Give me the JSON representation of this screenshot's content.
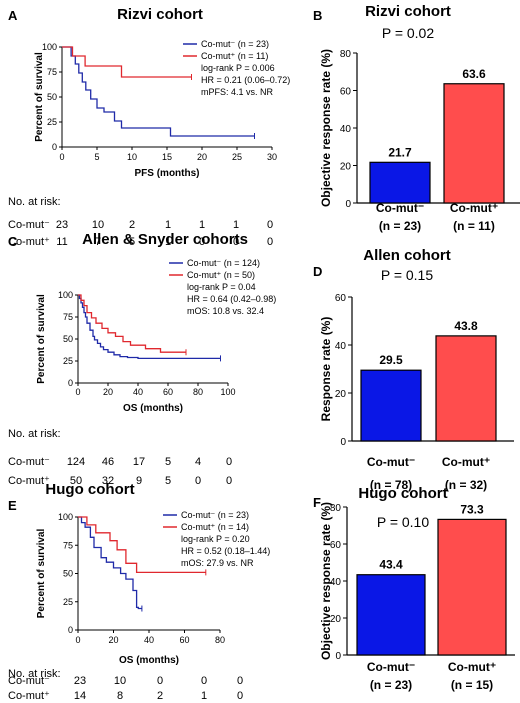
{
  "colors": {
    "blue": "#1f2aa8",
    "red": "#e0282e",
    "bar_blue": "#0a17e6",
    "bar_red": "#ff4d4d"
  },
  "risk_header": "No. at risk:",
  "row_lbl_neg": "Co-mut⁻",
  "row_lbl_pos": "Co-mut⁺",
  "chart_data": [
    {
      "panel": "A",
      "type": "line",
      "subtype": "kaplan-meier",
      "title": "Rizvi cohort",
      "xlabel": "PFS (months)",
      "ylabel": "Percent of survival",
      "xlim": [
        0,
        30
      ],
      "ylim": [
        0,
        100
      ],
      "xticks": [
        "0",
        "5",
        "10",
        "15",
        "20",
        "25",
        "30"
      ],
      "yticks": [
        "0",
        "25",
        "50",
        "75",
        "100"
      ],
      "legend": [
        {
          "label": "Co-mut⁻ (n = 23)",
          "color": "blue"
        },
        {
          "label": "Co-mut⁺ (n = 11)",
          "color": "red"
        }
      ],
      "stats": [
        "log-rank P = 0.006",
        "HR = 0.21 (0.06–0.72)",
        "mPFS: 4.1 vs. NR"
      ],
      "series": [
        {
          "name": "Co-mut⁻ (n = 23)",
          "color": "blue",
          "x": [
            0,
            1.3,
            1.3,
            1.9,
            1.9,
            2.4,
            2.4,
            2.9,
            2.9,
            3.4,
            3.4,
            4.1,
            4.1,
            5.0,
            5.0,
            6.0,
            6.0,
            7.5,
            7.5,
            8.5,
            8.5,
            15.5,
            15.5,
            27.5
          ],
          "y": [
            100,
            100,
            91,
            91,
            83,
            83,
            74,
            74,
            65,
            65,
            57,
            57,
            48,
            48,
            39,
            39,
            35,
            35,
            26,
            26,
            19,
            19,
            11,
            11
          ]
        },
        {
          "name": "Co-mut⁺ (n = 11)",
          "color": "red",
          "x": [
            0,
            1.5,
            1.5,
            3.3,
            3.3,
            8.5,
            8.5,
            18.5
          ],
          "y": [
            100,
            100,
            91,
            91,
            81,
            81,
            70,
            70
          ]
        }
      ],
      "risk": {
        "neg": [
          "23",
          "10",
          "2",
          "1",
          "1",
          "1",
          "0"
        ],
        "pos": [
          "11",
          "7",
          "5",
          "1",
          "0",
          "0",
          "0"
        ]
      }
    },
    {
      "panel": "B",
      "type": "bar",
      "title": "Rizvi cohort",
      "pvalue": "P = 0.02",
      "ylabel": "Objective response rate (%)",
      "ylim": [
        0,
        80
      ],
      "yticks": [
        "0",
        "20",
        "40",
        "60",
        "80"
      ],
      "categories": [
        "Co-mut⁻",
        "Co-mut⁺"
      ],
      "n_labels": [
        "(n = 23)",
        "(n = 11)"
      ],
      "values": [
        21.7,
        63.6
      ],
      "value_labels": [
        "21.7",
        "63.6"
      ]
    },
    {
      "panel": "C",
      "type": "line",
      "subtype": "kaplan-meier",
      "title": "Allen & Snyder cohorts",
      "xlabel": "OS (months)",
      "ylabel": "Percent of survival",
      "xlim": [
        0,
        100
      ],
      "ylim": [
        0,
        100
      ],
      "xticks": [
        "0",
        "20",
        "40",
        "60",
        "80",
        "100"
      ],
      "yticks": [
        "0",
        "25",
        "50",
        "75",
        "100"
      ],
      "legend": [
        {
          "label": "Co-mut⁻ (n = 124)",
          "color": "blue"
        },
        {
          "label": "Co-mut⁺ (n = 50)",
          "color": "red"
        }
      ],
      "stats": [
        "log-rank P = 0.04",
        "HR = 0.64 (0.42–0.98)",
        "mOS: 10.8 vs. 32.4"
      ],
      "series": [
        {
          "name": "Co-mut⁻ (n = 124)",
          "color": "blue",
          "x": [
            0,
            1,
            1,
            2,
            2,
            3,
            3,
            4,
            4,
            5,
            5,
            6,
            6,
            8,
            8,
            10,
            10,
            11,
            11,
            13,
            13,
            15,
            15,
            17,
            17,
            20,
            20,
            24,
            24,
            28,
            28,
            33,
            33,
            40,
            40,
            95
          ],
          "y": [
            100,
            100,
            96,
            96,
            91,
            91,
            86,
            86,
            80,
            80,
            75,
            75,
            68,
            68,
            60,
            60,
            53,
            53,
            49,
            49,
            45,
            45,
            41,
            41,
            38,
            38,
            35,
            35,
            32,
            32,
            30,
            30,
            29,
            29,
            28,
            28
          ]
        },
        {
          "name": "Co-mut⁺ (n = 50)",
          "color": "red",
          "x": [
            0,
            2,
            2,
            4,
            4,
            6,
            6,
            9,
            9,
            12,
            12,
            16,
            16,
            20,
            20,
            25,
            25,
            30,
            30,
            35,
            35,
            45,
            45,
            55,
            55,
            72
          ],
          "y": [
            100,
            100,
            94,
            94,
            88,
            88,
            80,
            80,
            74,
            74,
            68,
            68,
            62,
            62,
            57,
            57,
            53,
            53,
            47,
            47,
            43,
            43,
            39,
            39,
            35,
            35
          ]
        }
      ],
      "risk": {
        "neg": [
          "124",
          "46",
          "17",
          "5",
          "4",
          "0"
        ],
        "pos": [
          "50",
          "32",
          "9",
          "5",
          "0",
          "0"
        ]
      }
    },
    {
      "panel": "D",
      "type": "bar",
      "title": "Allen cohort",
      "pvalue": "P = 0.15",
      "ylabel": "Response rate (%)",
      "ylim": [
        0,
        60
      ],
      "yticks": [
        "0",
        "20",
        "40",
        "60"
      ],
      "categories": [
        "Co-mut⁻",
        "Co-mut⁺"
      ],
      "n_labels": [
        "(n = 78)",
        "(n = 32)"
      ],
      "values": [
        29.5,
        43.8
      ],
      "value_labels": [
        "29.5",
        "43.8"
      ]
    },
    {
      "panel": "E",
      "type": "line",
      "subtype": "kaplan-meier",
      "title": "Hugo cohort",
      "xlabel": "OS (months)",
      "ylabel": "Percent of survival",
      "xlim": [
        0,
        80
      ],
      "ylim": [
        0,
        100
      ],
      "xticks": [
        "0",
        "20",
        "40",
        "60",
        "80"
      ],
      "yticks": [
        "0",
        "25",
        "50",
        "75",
        "100"
      ],
      "legend": [
        {
          "label": "Co-mut⁻ (n = 23)",
          "color": "blue"
        },
        {
          "label": "Co-mut⁺ (n = 14)",
          "color": "red"
        }
      ],
      "stats": [
        "log-rank P = 0.20",
        "HR = 0.52 (0.18–1.44)",
        "mOS: 27.9 vs. NR"
      ],
      "series": [
        {
          "name": "Co-mut⁻ (n = 23)",
          "color": "blue",
          "x": [
            0,
            2,
            2,
            4,
            4,
            7,
            7,
            9,
            9,
            13,
            13,
            16,
            16,
            20,
            20,
            24,
            24,
            27,
            27,
            31,
            31,
            33,
            33,
            34,
            34,
            36
          ],
          "y": [
            100,
            100,
            95,
            95,
            91,
            91,
            82,
            82,
            73,
            73,
            64,
            64,
            60,
            60,
            55,
            55,
            50,
            50,
            45,
            45,
            35,
            35,
            20,
            20,
            19,
            19
          ]
        },
        {
          "name": "Co-mut⁺ (n = 14)",
          "color": "red",
          "x": [
            0,
            5,
            5,
            10,
            10,
            18,
            18,
            22,
            22,
            27,
            27,
            33,
            33,
            72
          ],
          "y": [
            100,
            100,
            93,
            93,
            86,
            86,
            79,
            79,
            71,
            71,
            59,
            59,
            51,
            51
          ]
        }
      ],
      "risk": {
        "neg": [
          "23",
          "10",
          "0",
          "0",
          "0"
        ],
        "pos": [
          "14",
          "8",
          "2",
          "1",
          "0"
        ]
      }
    },
    {
      "panel": "F",
      "type": "bar",
      "title": "Hugo cohort",
      "pvalue": "P = 0.10",
      "ylabel": "Objective response rate (%)",
      "ylim": [
        0,
        80
      ],
      "yticks": [
        "0",
        "20",
        "40",
        "60",
        "80"
      ],
      "categories": [
        "Co-mut⁻",
        "Co-mut⁺"
      ],
      "n_labels": [
        "(n = 23)",
        "(n = 15)"
      ],
      "values": [
        43.4,
        73.3
      ],
      "value_labels": [
        "43.4",
        "73.3"
      ]
    }
  ]
}
